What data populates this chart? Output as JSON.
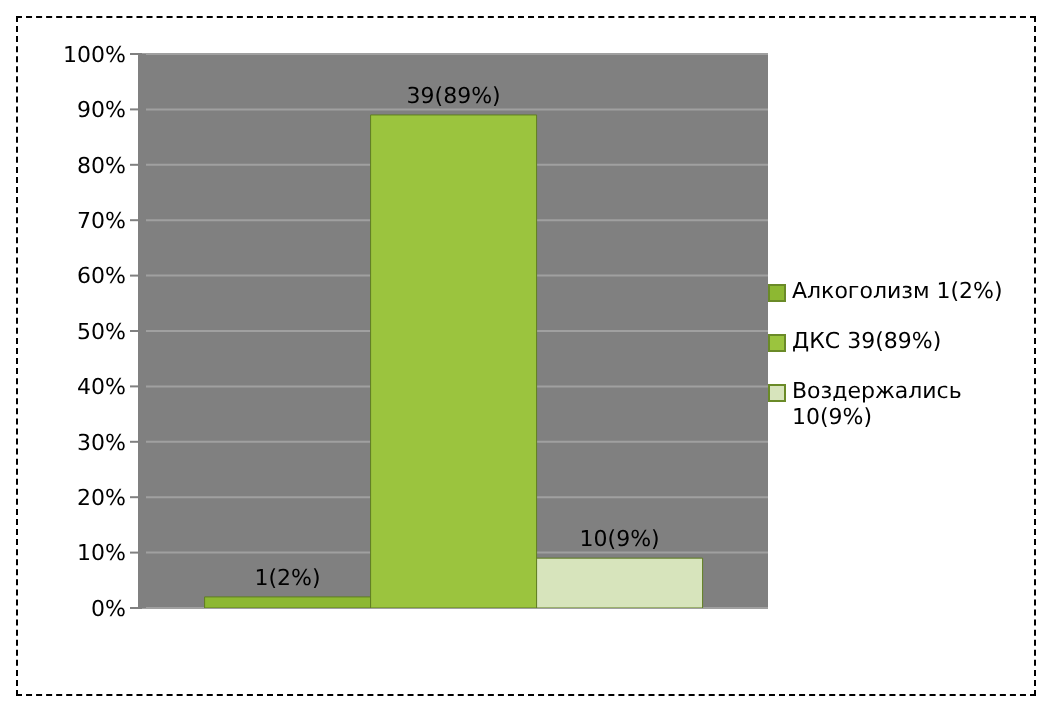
{
  "chart_data": {
    "type": "bar",
    "categories": [
      null
    ],
    "ylim": [
      0,
      100
    ],
    "yticks": [
      {
        "value": 0,
        "label": "0%"
      },
      {
        "value": 10,
        "label": "10%"
      },
      {
        "value": 20,
        "label": "20%"
      },
      {
        "value": 30,
        "label": "30%"
      },
      {
        "value": 40,
        "label": "40%"
      },
      {
        "value": 50,
        "label": "50%"
      },
      {
        "value": 60,
        "label": "60%"
      },
      {
        "value": 70,
        "label": "70%"
      },
      {
        "value": 80,
        "label": "80%"
      },
      {
        "value": 90,
        "label": "90%"
      },
      {
        "value": 100,
        "label": "100%"
      }
    ],
    "grid": "y",
    "legend": "right",
    "series": [
      {
        "name": "Алкоголизм 1(2%)",
        "color": "#8db832",
        "values": [
          2
        ],
        "value_labels": [
          "1(2%)"
        ]
      },
      {
        "name": "ДКС 39(89%)",
        "color": "#9bc43e",
        "values": [
          89
        ],
        "value_labels": [
          "39(89%)"
        ]
      },
      {
        "name": "Воздержались 10(9%)",
        "color": "#d7e4bc",
        "values": [
          9
        ],
        "value_labels": [
          "10(9%)"
        ]
      }
    ]
  }
}
